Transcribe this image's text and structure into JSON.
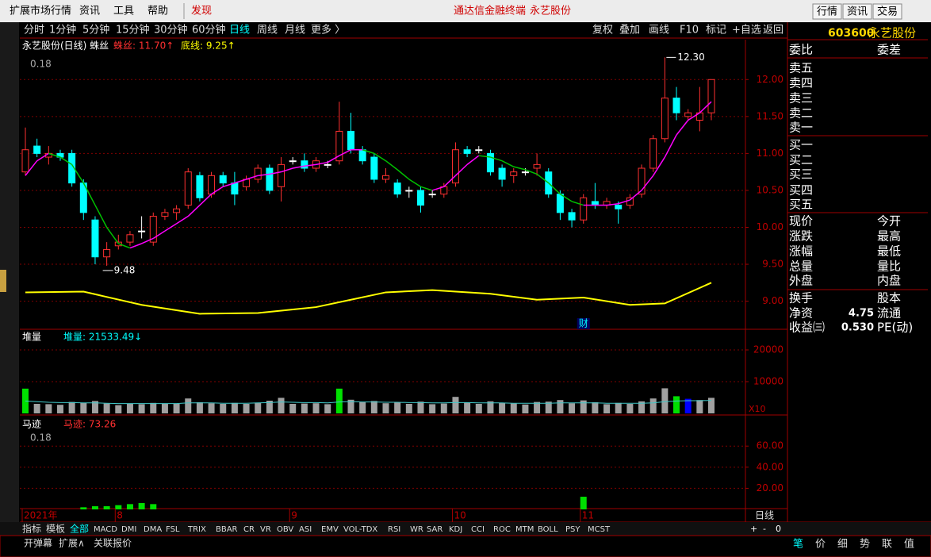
{
  "menu": {
    "items": [
      "扩展市场行情",
      "资讯",
      "工具",
      "帮助",
      "发现"
    ],
    "center": [
      "通达信金融终端",
      "永艺股份"
    ],
    "buttons": [
      "行情",
      "资讯",
      "交易"
    ]
  },
  "toolbar": {
    "periods": [
      "分时",
      "1分钟",
      "5分钟",
      "15分钟",
      "30分钟",
      "60分钟",
      "日线",
      "周线",
      "月线",
      "更多 〉"
    ],
    "tools": [
      "复权",
      "叠加",
      "画线",
      "F10",
      "标记",
      "+自选",
      "返回"
    ]
  },
  "quote_header": {
    "code": "603600",
    "name": "永艺股份"
  },
  "chart_data": [
    {
      "type": "candlestick",
      "title": "永艺股份(日线) 蛛丝",
      "legend": [
        "蛛丝: 11.70↑",
        "底线: 9.25↑"
      ],
      "corner_label": "0.18",
      "candles": [
        [
          10.75,
          11.35,
          10.7,
          11.05
        ],
        [
          11.1,
          11.2,
          10.95,
          11.0
        ],
        [
          10.95,
          11.1,
          10.85,
          11.0
        ],
        [
          11.0,
          11.05,
          10.9,
          10.95
        ],
        [
          11.0,
          11.05,
          10.55,
          10.6
        ],
        [
          10.6,
          10.65,
          10.1,
          10.2
        ],
        [
          10.1,
          10.15,
          9.5,
          9.6
        ],
        [
          9.6,
          9.8,
          9.48,
          9.7
        ],
        [
          9.75,
          9.9,
          9.7,
          9.8
        ],
        [
          9.8,
          9.95,
          9.75,
          9.9
        ],
        [
          9.95,
          10.15,
          9.85,
          9.95
        ],
        [
          9.8,
          10.2,
          9.75,
          10.15
        ],
        [
          10.15,
          10.25,
          10.1,
          10.2
        ],
        [
          10.2,
          10.3,
          10.1,
          10.25
        ],
        [
          10.3,
          10.8,
          10.25,
          10.75
        ],
        [
          10.7,
          10.75,
          10.35,
          10.4
        ],
        [
          10.45,
          10.75,
          10.4,
          10.7
        ],
        [
          10.7,
          10.75,
          10.55,
          10.6
        ],
        [
          10.6,
          10.75,
          10.3,
          10.45
        ],
        [
          10.55,
          10.7,
          10.5,
          10.65
        ],
        [
          10.65,
          10.85,
          10.6,
          10.8
        ],
        [
          10.8,
          10.85,
          10.45,
          10.5
        ],
        [
          10.55,
          10.95,
          10.35,
          10.85
        ],
        [
          10.9,
          10.95,
          10.85,
          10.9
        ],
        [
          10.9,
          11.0,
          10.75,
          10.8
        ],
        [
          10.8,
          10.95,
          10.75,
          10.9
        ],
        [
          10.85,
          10.9,
          10.8,
          10.85
        ],
        [
          10.9,
          11.7,
          10.85,
          11.3
        ],
        [
          11.3,
          11.55,
          11.0,
          11.05
        ],
        [
          11.05,
          11.1,
          10.85,
          10.9
        ],
        [
          10.95,
          11.0,
          10.6,
          10.65
        ],
        [
          10.65,
          10.8,
          10.6,
          10.7
        ],
        [
          10.6,
          10.65,
          10.4,
          10.45
        ],
        [
          10.5,
          10.55,
          10.4,
          10.5
        ],
        [
          10.5,
          10.55,
          10.2,
          10.3
        ],
        [
          10.45,
          10.5,
          10.4,
          10.45
        ],
        [
          10.45,
          10.6,
          10.4,
          10.55
        ],
        [
          10.6,
          11.15,
          10.55,
          11.05
        ],
        [
          11.05,
          11.1,
          10.95,
          11.0
        ],
        [
          11.05,
          11.1,
          11.0,
          11.05
        ],
        [
          11.0,
          11.05,
          10.7,
          10.75
        ],
        [
          10.8,
          10.85,
          10.55,
          10.65
        ],
        [
          10.7,
          10.8,
          10.6,
          10.75
        ],
        [
          10.75,
          10.8,
          10.7,
          10.75
        ],
        [
          10.8,
          11.0,
          10.7,
          10.85
        ],
        [
          10.75,
          10.8,
          10.4,
          10.45
        ],
        [
          10.45,
          10.5,
          10.1,
          10.2
        ],
        [
          10.2,
          10.25,
          10.0,
          10.1
        ],
        [
          10.1,
          10.45,
          10.05,
          10.4
        ],
        [
          10.35,
          10.6,
          10.25,
          10.3
        ],
        [
          10.3,
          10.4,
          10.25,
          10.35
        ],
        [
          10.3,
          10.35,
          10.05,
          10.25
        ],
        [
          10.3,
          10.45,
          10.25,
          10.4
        ],
        [
          10.45,
          10.85,
          10.4,
          10.8
        ],
        [
          10.8,
          11.25,
          10.75,
          11.2
        ],
        [
          11.2,
          12.3,
          11.15,
          11.75
        ],
        [
          11.75,
          11.9,
          11.45,
          11.55
        ],
        [
          11.5,
          11.6,
          11.45,
          11.55
        ],
        [
          11.45,
          11.9,
          11.3,
          11.55
        ],
        [
          11.55,
          12.0,
          11.45,
          12.0
        ]
      ],
      "series": [
        {
          "name": "蛛丝",
          "values": [
            10.7,
            10.9,
            11.0,
            10.95,
            10.85,
            10.6,
            10.3,
            10.0,
            9.78,
            9.72,
            9.78,
            9.85,
            9.95,
            10.05,
            10.15,
            10.3,
            10.45,
            10.55,
            10.6,
            10.65,
            10.7,
            10.72,
            10.75,
            10.8,
            10.83,
            10.85,
            10.88,
            10.97,
            11.05,
            11.05,
            11.0,
            10.9,
            10.78,
            10.65,
            10.55,
            10.5,
            10.55,
            10.7,
            10.85,
            10.97,
            10.95,
            10.9,
            10.82,
            10.78,
            10.72,
            10.6,
            10.45,
            10.35,
            10.3,
            10.3,
            10.3,
            10.32,
            10.37,
            10.5,
            10.7,
            10.95,
            11.25,
            11.45,
            11.55,
            11.7
          ]
        },
        {
          "name": "底线",
          "color": "#ffff00",
          "x": [
            0,
            5,
            10,
            15,
            20,
            25,
            28,
            31,
            35,
            40,
            44,
            48,
            52,
            55,
            59
          ],
          "values": [
            9.12,
            9.13,
            8.95,
            8.83,
            8.84,
            8.92,
            9.02,
            9.12,
            9.15,
            9.1,
            9.02,
            9.05,
            8.95,
            8.97,
            9.25
          ]
        }
      ],
      "annotations": [
        {
          "text": "12.30",
          "index": 55,
          "value": 12.3
        },
        {
          "text": "9.48",
          "index": 7,
          "value": 9.48
        },
        {
          "text": "财",
          "index": 48
        }
      ],
      "ylim": [
        8.62,
        12.54
      ],
      "yticks": [
        {
          "value": 9,
          "label": "9.00"
        },
        {
          "value": 9.5,
          "label": "9.50"
        },
        {
          "value": 10,
          "label": "10.00"
        },
        {
          "value": 10.5,
          "label": "10.50"
        },
        {
          "value": 11,
          "label": "11.00"
        },
        {
          "value": 11.5,
          "label": "11.50"
        },
        {
          "value": 12,
          "label": "12.00"
        }
      ]
    },
    {
      "type": "bar",
      "title": "堆量",
      "legend": [
        "堆量: 21533.49↓"
      ],
      "scale_label": "X10",
      "color": "#a0a0a0",
      "highlight_colors": {
        "0": "#00e000",
        "27": "#00e000",
        "56": "#00e000",
        "57": "#0000ff"
      },
      "values": [
        7800,
        3000,
        2900,
        2700,
        3600,
        3300,
        3900,
        3100,
        2600,
        3000,
        2900,
        3300,
        3100,
        3000,
        4700,
        3500,
        3200,
        3000,
        3300,
        3000,
        3400,
        4000,
        4900,
        3000,
        3100,
        3200,
        2900,
        7800,
        4300,
        3500,
        3900,
        3200,
        3500,
        3000,
        3700,
        2900,
        3100,
        5200,
        3400,
        3000,
        3800,
        3300,
        3100,
        2800,
        3600,
        3700,
        4200,
        3200,
        4100,
        3500,
        2900,
        3300,
        3000,
        3800,
        4700,
        7900,
        5400,
        4600,
        4200,
        4900
      ],
      "series": [
        {
          "name": "avg",
          "color": "#40c8c8",
          "values": [
            3900,
            3700,
            3500,
            3400,
            3400,
            3300,
            3300,
            3200,
            3100,
            3100,
            3100,
            3100,
            3100,
            3100,
            3300,
            3300,
            3300,
            3200,
            3200,
            3200,
            3300,
            3400,
            3600,
            3500,
            3400,
            3400,
            3300,
            3600,
            3700,
            3600,
            3600,
            3500,
            3500,
            3400,
            3400,
            3300,
            3300,
            3400,
            3400,
            3300,
            3300,
            3300,
            3200,
            3200,
            3200,
            3200,
            3300,
            3300,
            3300,
            3300,
            3200,
            3200,
            3200,
            3200,
            3300,
            3700,
            3900,
            4000,
            4000,
            4100
          ]
        }
      ],
      "ylim": [
        0,
        26500
      ],
      "yticks": [
        10000,
        20000
      ]
    },
    {
      "type": "bar",
      "title": "马迹",
      "legend": [
        "马迹: 73.26"
      ],
      "corner_label": "0.18",
      "color": "#00e000",
      "values": [
        null,
        null,
        null,
        null,
        null,
        2,
        3,
        3,
        4,
        5,
        6,
        5,
        null,
        null,
        null,
        null,
        null,
        null,
        null,
        null,
        null,
        null,
        null,
        null,
        null,
        null,
        null,
        null,
        null,
        null,
        null,
        null,
        null,
        null,
        null,
        null,
        null,
        null,
        null,
        null,
        null,
        null,
        null,
        null,
        null,
        null,
        null,
        null,
        12,
        null,
        null,
        null,
        null,
        null,
        null,
        null,
        null,
        null,
        null,
        null
      ],
      "ylim": [
        0,
        88
      ],
      "yticks": [
        {
          "value": 20,
          "label": "20.00"
        },
        {
          "value": 40,
          "label": "40.00"
        },
        {
          "value": 60,
          "label": "60.00"
        }
      ]
    }
  ],
  "date_axis": {
    "labels": [
      "2021年",
      "8",
      "9",
      "10",
      "11"
    ],
    "period": "日线"
  },
  "indicator_tabs": [
    "指标",
    "模板",
    "全部",
    "MACD",
    "DMI",
    "DMA",
    "FSL",
    "TRIX",
    "BBAR",
    "CR",
    "VR",
    "OBV",
    "ASI",
    "EMV",
    "VOL-TDX",
    "RSI",
    "WR",
    "SAR",
    "KDJ",
    "CCI",
    "ROC",
    "MTM",
    "BOLL",
    "PSY",
    "MCST"
  ],
  "zoom": [
    "+",
    "-",
    "0"
  ],
  "bottom": {
    "left": [
      "开弹幕",
      "扩展∧",
      "关联报价"
    ],
    "right": [
      "笔",
      "价",
      "细",
      "势",
      "联",
      "值"
    ]
  },
  "quote_panel": {
    "rows": [
      [
        "委比",
        "委差"
      ],
      [
        "卖五"
      ],
      [
        "卖四"
      ],
      [
        "卖三"
      ],
      [
        "卖二"
      ],
      [
        "卖一"
      ],
      [
        "买一"
      ],
      [
        "买二"
      ],
      [
        "买三"
      ],
      [
        "买四"
      ],
      [
        "买五"
      ],
      [
        "现价",
        "今开"
      ],
      [
        "涨跌",
        "最高"
      ],
      [
        "涨幅",
        "最低"
      ],
      [
        "总量",
        "量比"
      ],
      [
        "外盘",
        "内盘"
      ],
      [
        "换手",
        "股本"
      ],
      [
        "净资",
        "4.75",
        "流通"
      ],
      [
        "收益㈢",
        "0.530",
        "PE(动)"
      ]
    ]
  }
}
